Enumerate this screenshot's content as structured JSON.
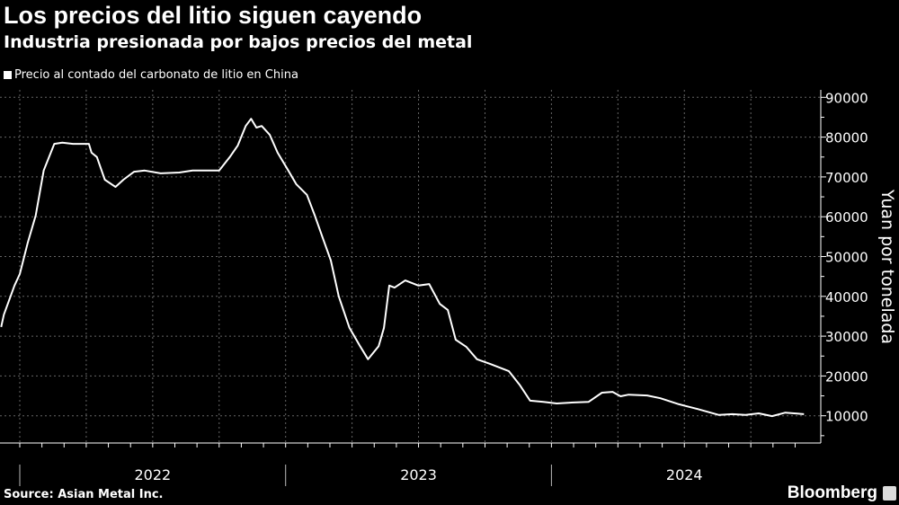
{
  "header": {
    "title": "Los precios del litio siguen cayendo",
    "subtitle": "Industria presionada por bajos precios del metal"
  },
  "footer": {
    "source": "Source: Asian Metal Inc.",
    "brand": "Bloomberg"
  },
  "colors": {
    "background": "#000000",
    "line": "#ffffff",
    "grid": "#555555"
  },
  "chart_data": {
    "type": "line",
    "title": "Los precios del litio siguen cayendo",
    "subtitle": "Industria presionada por bajos precios del metal",
    "xlabel": "",
    "ylabel": "Yuan por tonelada",
    "x_unit": "decimal year",
    "xlim": [
      2021.93,
      2025.0
    ],
    "ylim": [
      0,
      90000
    ],
    "yticks": [
      10000,
      20000,
      30000,
      40000,
      50000,
      60000,
      70000,
      80000,
      90000
    ],
    "ytick_labels": [
      "10000",
      "20000",
      "30000",
      "40000",
      "50000",
      "60000",
      "70000",
      "80000",
      "90000"
    ],
    "xtick_labels": [
      "2022",
      "2023",
      "2024"
    ],
    "grid": true,
    "legend_position": "top-left",
    "series": [
      {
        "name": "Precio al contado del carbonato de litio en China",
        "x": [
          2021.93,
          2021.94,
          2021.98,
          2022.0,
          2022.03,
          2022.06,
          2022.09,
          2022.13,
          2022.16,
          2022.2,
          2022.26,
          2022.27,
          2022.29,
          2022.32,
          2022.36,
          2022.39,
          2022.43,
          2022.47,
          2022.53,
          2022.6,
          2022.65,
          2022.7,
          2022.75,
          2022.79,
          2022.82,
          2022.85,
          2022.87,
          2022.89,
          2022.91,
          2022.94,
          2022.97,
          2023.01,
          2023.04,
          2023.08,
          2023.11,
          2023.14,
          2023.17,
          2023.2,
          2023.24,
          2023.28,
          2023.31,
          2023.35,
          2023.37,
          2023.39,
          2023.41,
          2023.45,
          2023.5,
          2023.54,
          2023.58,
          2023.61,
          2023.64,
          2023.68,
          2023.72,
          2023.77,
          2023.84,
          2023.88,
          2023.92,
          2023.97,
          2024.02,
          2024.07,
          2024.14,
          2024.19,
          2024.23,
          2024.26,
          2024.29,
          2024.36,
          2024.41,
          2024.48,
          2024.55,
          2024.63,
          2024.68,
          2024.73,
          2024.78,
          2024.83,
          2024.88,
          2024.95
        ],
        "values": [
          32300,
          35400,
          42700,
          45600,
          53500,
          60300,
          71600,
          78300,
          78600,
          78300,
          78300,
          76100,
          75000,
          69300,
          67500,
          69300,
          71300,
          71600,
          70900,
          71100,
          71600,
          71600,
          71600,
          75000,
          77900,
          82800,
          84600,
          82400,
          82800,
          80600,
          76100,
          71600,
          68200,
          65500,
          60300,
          54600,
          49000,
          40000,
          32100,
          27500,
          24200,
          27500,
          32100,
          42700,
          42200,
          44000,
          42700,
          43100,
          38100,
          36600,
          29100,
          27300,
          24200,
          23000,
          21200,
          17800,
          13800,
          13500,
          13100,
          13300,
          13500,
          15800,
          16000,
          14900,
          15300,
          15100,
          14400,
          12900,
          11700,
          10200,
          10400,
          10200,
          10600,
          9900,
          10800,
          10400
        ]
      }
    ]
  }
}
